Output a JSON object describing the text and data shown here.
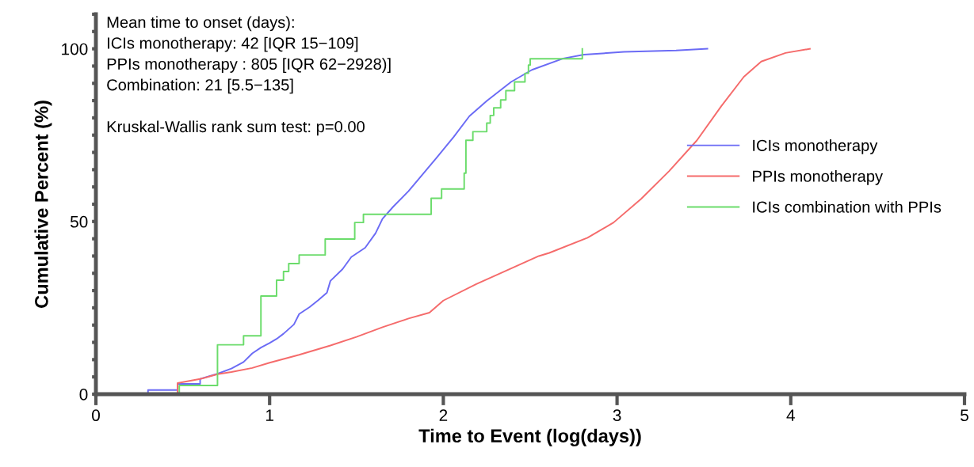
{
  "chart_data": {
    "type": "step",
    "xlabel": "Time to Event (log(days))",
    "ylabel": "Cumulative Percent (%)",
    "xlim": [
      0,
      5
    ],
    "xticks": [
      0,
      1,
      2,
      3,
      4,
      5
    ],
    "ylim": [
      0,
      110
    ],
    "yticks": [
      0,
      {
        "value": 5,
        "label": null
      },
      {
        "value": 10,
        "label": null
      },
      {
        "value": 15,
        "label": null
      },
      {
        "value": 20,
        "label": null
      },
      {
        "value": 25,
        "label": null
      },
      {
        "value": 30,
        "label": null
      },
      {
        "value": 35,
        "label": null
      },
      {
        "value": 40,
        "label": null
      },
      {
        "value": 45,
        "label": null
      },
      50,
      {
        "value": 55,
        "label": null
      },
      {
        "value": 60,
        "label": null
      },
      {
        "value": 65,
        "label": null
      },
      {
        "value": 70,
        "label": null
      },
      {
        "value": 75,
        "label": null
      },
      {
        "value": 80,
        "label": null
      },
      {
        "value": 85,
        "label": null
      },
      {
        "value": 90,
        "label": null
      },
      {
        "value": 95,
        "label": null
      },
      100,
      {
        "value": 105,
        "label": null
      },
      {
        "value": 110,
        "label": null
      }
    ],
    "grid": false,
    "legend": "right",
    "annotations": [
      "Mean time to onset (days):",
      "ICIs monotherapy: 42 [IQR 15−109]",
      "PPIs monotherapy : 805 [IQR 62−2928)]",
      "Combination: 21 [5.5−135]",
      "Kruskal-Wallis rank sum test: p=0.00"
    ],
    "series": [
      {
        "name": "ICIs monotherapy",
        "type": "line",
        "color": "#6b6bf5",
        "x": [
          0,
          0.3,
          0.3,
          0.47,
          0.47,
          0.6,
          0.6,
          0.7,
          0.78,
          0.85,
          0.9,
          0.95,
          1.0,
          1.04,
          1.08,
          1.14,
          1.17,
          1.23,
          1.28,
          1.33,
          1.35,
          1.42,
          1.47,
          1.55,
          1.61,
          1.65,
          1.71,
          1.8,
          1.96,
          2.06,
          2.15,
          2.25,
          2.39,
          2.51,
          2.69,
          2.81,
          3.04,
          3.34,
          3.52
        ],
        "values": [
          0,
          0,
          1.2,
          1.2,
          3.0,
          3.0,
          4.4,
          5.9,
          7.4,
          9.3,
          11.8,
          13.5,
          14.8,
          16,
          17.5,
          20.2,
          23.2,
          25.2,
          27.2,
          29.4,
          32.8,
          36.2,
          39.7,
          42.4,
          46.6,
          50.8,
          54.2,
          58.8,
          68.4,
          74.5,
          80.5,
          84.9,
          90.4,
          93.9,
          97.2,
          98.3,
          99.1,
          99.5,
          100
        ]
      },
      {
        "name": "PPIs monotherapy",
        "type": "line",
        "color": "#f56b6b",
        "x": [
          0,
          0.47,
          0.47,
          0.6,
          0.7,
          0.78,
          0.9,
          1.0,
          1.17,
          1.35,
          1.5,
          1.65,
          1.8,
          1.92,
          2.0,
          2.19,
          2.35,
          2.55,
          2.61,
          2.83,
          2.98,
          3.14,
          3.3,
          3.46,
          3.6,
          3.73,
          3.83,
          3.97,
          4.11
        ],
        "values": [
          0,
          0,
          3.2,
          4.4,
          5.8,
          6.4,
          7.6,
          9.1,
          11.4,
          14.1,
          16.6,
          19.4,
          21.9,
          23.6,
          27.1,
          31.9,
          35.5,
          40,
          40.9,
          45.3,
          49.7,
          56.6,
          64.6,
          73.5,
          83.4,
          91.9,
          96.3,
          98.8,
          100
        ]
      },
      {
        "name": "ICIs combination with PPIs",
        "color": "#6bdc6b",
        "x": [
          0,
          0.48,
          0.7,
          0.85,
          0.95,
          1.04,
          1.08,
          1.11,
          1.17,
          1.32,
          1.49,
          1.54,
          1.93,
          1.99,
          2.12,
          2.13,
          2.17,
          2.25,
          2.27,
          2.29,
          2.33,
          2.36,
          2.41,
          2.47,
          2.49,
          2.5,
          2.8
        ],
        "values": [
          0,
          2.5,
          14.3,
          16.9,
          28.4,
          33,
          35.5,
          37.8,
          40.3,
          44.9,
          49.7,
          52.1,
          56.7,
          59.4,
          64,
          73.5,
          76,
          78.5,
          80.7,
          82.9,
          85.2,
          87.9,
          90.4,
          92.9,
          95.3,
          97.1,
          100
        ]
      }
    ]
  }
}
